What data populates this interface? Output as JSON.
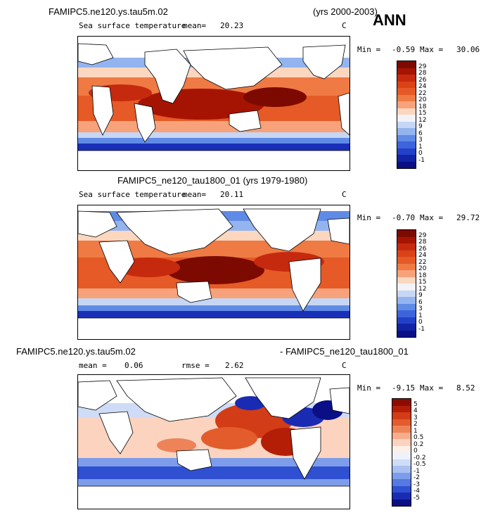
{
  "overall_title": "ANN",
  "panels": [
    {
      "case": "FAMIPC5.ne120.ys.tau5m.02",
      "years": "(yrs 2000-2003)",
      "variable": "Sea surface temperature",
      "mean_label": "mean=",
      "mean": "20.23",
      "units": "C",
      "min_label": "Min =",
      "min": "-0.59",
      "max_label": "Max =",
      "max": "30.06"
    },
    {
      "case": "FAMIPC5_ne120_tau1800_01 (yrs 1979-1980)",
      "variable": "Sea surface temperature",
      "mean_label": "mean=",
      "mean": "20.11",
      "units": "C",
      "min_label": "Min =",
      "min": "-0.70",
      "max_label": "Max =",
      "max": "29.72"
    },
    {
      "case_left": "FAMIPC5.ne120.ys.tau5m.02",
      "case_right": "- FAMIPC5_ne120_tau1800_01",
      "mean_label": "mean =",
      "mean": "0.06",
      "rmse_label": "rmse =",
      "rmse": "2.62",
      "units": "C",
      "min_label": "Min =",
      "min": "-9.15",
      "max_label": "Max =",
      "max": "8.52"
    }
  ],
  "chart_data": [
    {
      "type": "heatmap",
      "title": "FAMIPC5.ne120.ys.tau5m.02 (yrs 2000-2003) - Sea surface temperature",
      "units": "C",
      "mean": 20.23,
      "min": -0.59,
      "max": 30.06,
      "colorbar_levels": [
        "29",
        "28",
        "26",
        "24",
        "22",
        "20",
        "18",
        "15",
        "12",
        "9",
        "6",
        "3",
        "1",
        "0",
        "-1"
      ],
      "colorbar_colors": [
        "#7d0a00",
        "#a51403",
        "#c62a0e",
        "#da4217",
        "#e55a26",
        "#ef7a44",
        "#f7a27a",
        "#fbd7bf",
        "#f2f2f7",
        "#c6d7f5",
        "#93b4ef",
        "#5f8be6",
        "#3d64dc",
        "#2341c8",
        "#1223a5",
        "#0a0f86"
      ]
    },
    {
      "type": "heatmap",
      "title": "FAMIPC5_ne120_tau1800_01 (yrs 1979-1980) - Sea surface temperature",
      "units": "C",
      "mean": 20.11,
      "min": -0.7,
      "max": 29.72,
      "colorbar_levels": [
        "29",
        "28",
        "26",
        "24",
        "22",
        "20",
        "18",
        "15",
        "12",
        "9",
        "6",
        "3",
        "1",
        "0",
        "-1"
      ],
      "colorbar_colors": [
        "#7d0a00",
        "#a51403",
        "#c62a0e",
        "#da4217",
        "#e55a26",
        "#ef7a44",
        "#f7a27a",
        "#fbd7bf",
        "#f2f2f7",
        "#c6d7f5",
        "#93b4ef",
        "#5f8be6",
        "#3d64dc",
        "#2341c8",
        "#1223a5",
        "#0a0f86"
      ]
    },
    {
      "type": "heatmap",
      "title": "FAMIPC5.ne120.ys.tau5m.02 - FAMIPC5_ne120_tau1800_01",
      "units": "C",
      "mean": 0.06,
      "rmse": 2.62,
      "min": -9.15,
      "max": 8.52,
      "colorbar_levels": [
        "5",
        "4",
        "3",
        "2",
        "1",
        "0.5",
        "0.2",
        "0",
        "-0.2",
        "-0.5",
        "-1",
        "-2",
        "-3",
        "-4",
        "-5"
      ],
      "colorbar_colors": [
        "#8c0c00",
        "#b41e06",
        "#d23c16",
        "#e35c2c",
        "#ee8358",
        "#f6ad8c",
        "#fbd3bf",
        "#fdf0e8",
        "#eef2fb",
        "#cfdcf7",
        "#a9c0f1",
        "#7d9deb",
        "#5679e2",
        "#3050d2",
        "#1a2bb3",
        "#0a0f86"
      ]
    }
  ]
}
